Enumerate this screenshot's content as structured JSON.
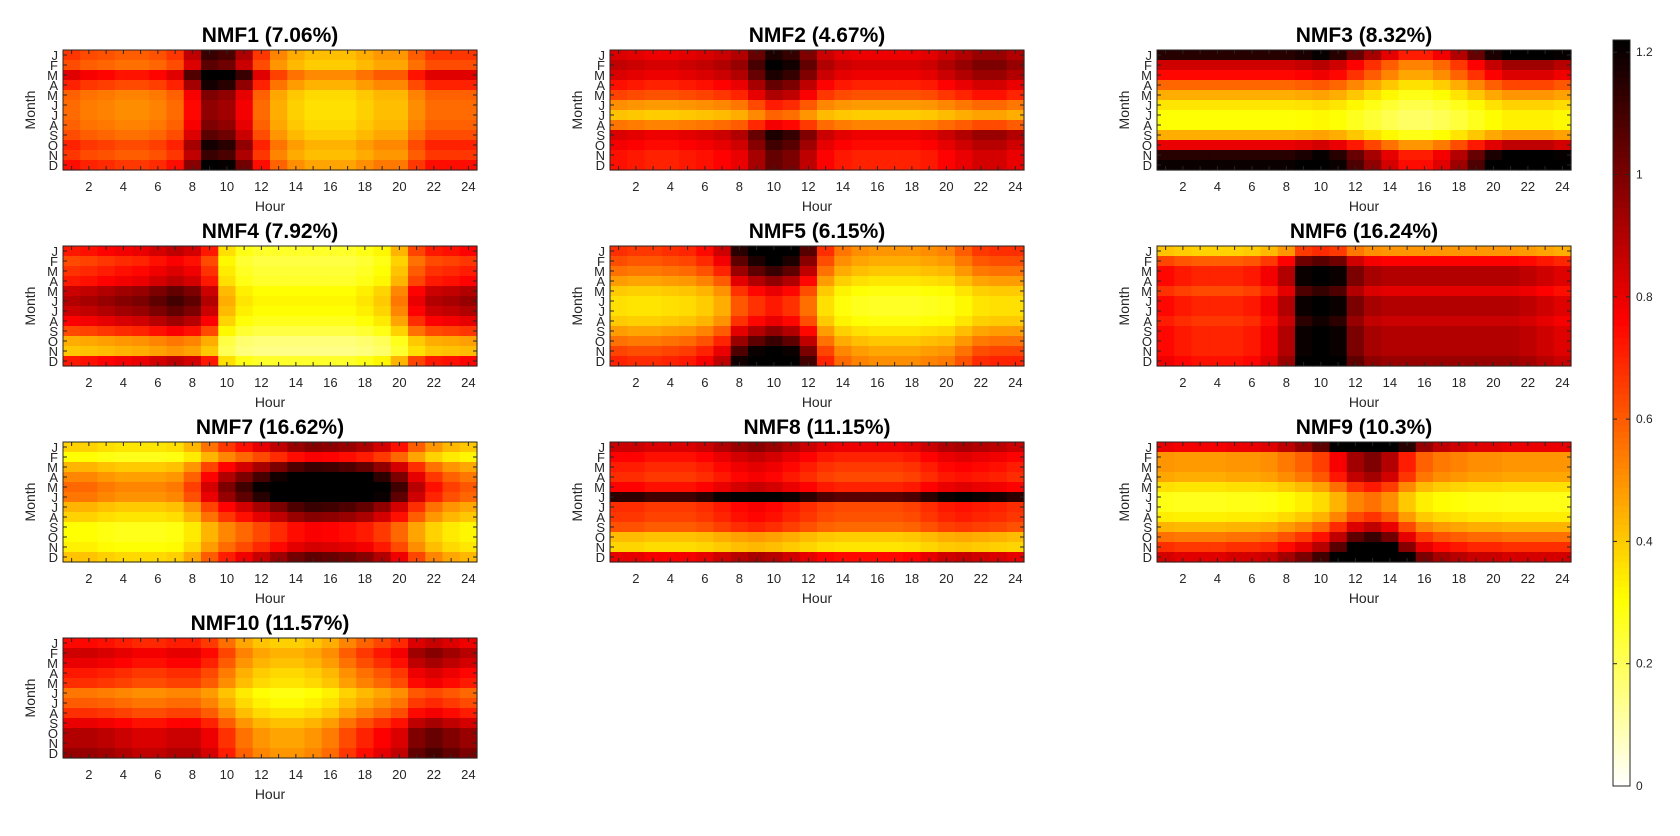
{
  "figure_title": "NMF components: Month x Hour heatmaps",
  "chart_data": {
    "type": "heatmap",
    "xlabel": "Hour",
    "ylabel": "Month",
    "x_ticks": [
      "2",
      "4",
      "6",
      "8",
      "10",
      "12",
      "14",
      "16",
      "18",
      "20",
      "22",
      "24"
    ],
    "months": [
      "J",
      "F",
      "M",
      "A",
      "M",
      "J",
      "J",
      "A",
      "S",
      "O",
      "N",
      "D"
    ],
    "hours": [
      1,
      2,
      3,
      4,
      5,
      6,
      7,
      8,
      9,
      10,
      11,
      12,
      13,
      14,
      15,
      16,
      17,
      18,
      19,
      20,
      21,
      22,
      23,
      24
    ],
    "colormap": "hot (reversed): 0 = white, 1.22 = black",
    "colorbar": {
      "min": 0,
      "max": 1.22,
      "ticks": [
        "0",
        "0.2",
        "0.4",
        "0.6",
        "0.8",
        "1",
        "1.2"
      ],
      "tick_values": [
        0,
        0.2,
        0.4,
        0.6,
        0.8,
        1.0,
        1.2
      ]
    },
    "panels": [
      {
        "title": "NMF1 (7.06%)",
        "month_level": [
          0.7,
          0.66,
          0.86,
          0.74,
          0.62,
          0.6,
          0.6,
          0.62,
          0.66,
          0.74,
          0.7,
          0.78
        ],
        "hour_profile": [
          0.95,
          0.9,
          0.88,
          0.85,
          0.85,
          0.88,
          0.95,
          1.25,
          1.6,
          1.55,
          1.3,
          0.95,
          0.75,
          0.65,
          0.6,
          0.6,
          0.6,
          0.65,
          0.7,
          0.7,
          0.85,
          0.95,
          0.95,
          0.95
        ]
      },
      {
        "title": "NMF2 (4.67%)",
        "month_level": [
          0.9,
          0.95,
          0.9,
          0.8,
          0.7,
          0.55,
          0.45,
          0.6,
          0.9,
          0.85,
          0.8,
          0.8
        ],
        "hour_profile": [
          0.92,
          0.9,
          0.88,
          0.88,
          0.9,
          0.92,
          0.95,
          1.0,
          1.15,
          1.3,
          1.25,
          1.1,
          0.95,
          0.9,
          0.88,
          0.88,
          0.88,
          0.88,
          0.9,
          0.95,
          1.0,
          1.05,
          1.05,
          1.0
        ]
      },
      {
        "title": "NMF3 (8.32%)",
        "month_level": [
          1.15,
          0.85,
          0.75,
          0.58,
          0.45,
          0.35,
          0.3,
          0.3,
          0.45,
          0.8,
          1.15,
          1.2
        ],
        "hour_profile": [
          1.0,
          1.0,
          1.0,
          1.0,
          1.0,
          1.0,
          1.0,
          1.0,
          1.02,
          1.05,
          1.0,
          0.9,
          0.8,
          0.7,
          0.62,
          0.62,
          0.68,
          0.78,
          0.9,
          1.02,
          1.1,
          1.1,
          1.1,
          1.05
        ]
      },
      {
        "title": "NMF4 (7.92%)",
        "month_level": [
          0.8,
          0.7,
          0.75,
          0.8,
          0.95,
          1.0,
          0.95,
          0.85,
          0.7,
          0.5,
          0.45,
          0.8
        ],
        "hour_profile": [
          0.9,
          0.92,
          0.95,
          0.98,
          1.0,
          1.05,
          1.1,
          1.05,
          0.9,
          0.45,
          0.35,
          0.32,
          0.32,
          0.32,
          0.32,
          0.32,
          0.32,
          0.35,
          0.4,
          0.55,
          0.8,
          0.9,
          0.92,
          0.95
        ]
      },
      {
        "title": "NMF5 (6.15%)",
        "month_level": [
          0.85,
          0.78,
          0.7,
          0.6,
          0.5,
          0.45,
          0.45,
          0.5,
          0.6,
          0.7,
          0.8,
          0.88
        ],
        "hour_profile": [
          0.8,
          0.78,
          0.78,
          0.8,
          0.82,
          0.88,
          1.0,
          1.35,
          1.5,
          1.6,
          1.5,
          1.25,
          0.8,
          0.65,
          0.6,
          0.58,
          0.58,
          0.58,
          0.6,
          0.62,
          0.7,
          0.78,
          0.8,
          0.8
        ]
      },
      {
        "title": "NMF6 (16.24%)",
        "month_level": [
          0.55,
          0.85,
          1.0,
          1.0,
          0.9,
          1.0,
          1.0,
          0.95,
          1.0,
          1.0,
          1.0,
          1.05
        ],
        "hour_profile": [
          0.75,
          0.72,
          0.7,
          0.7,
          0.7,
          0.72,
          0.78,
          0.9,
          1.2,
          1.25,
          1.2,
          1.0,
          0.92,
          0.9,
          0.9,
          0.9,
          0.9,
          0.9,
          0.9,
          0.9,
          0.9,
          0.88,
          0.85,
          0.82
        ]
      },
      {
        "title": "NMF7 (16.62%)",
        "month_level": [
          0.7,
          0.55,
          0.8,
          0.95,
          1.05,
          1.0,
          0.8,
          0.7,
          0.55,
          0.55,
          0.6,
          0.75
        ],
        "hour_profile": [
          0.55,
          0.55,
          0.52,
          0.5,
          0.5,
          0.5,
          0.52,
          0.62,
          0.8,
          0.95,
          1.05,
          1.15,
          1.25,
          1.35,
          1.4,
          1.38,
          1.35,
          1.3,
          1.2,
          1.05,
          0.85,
          0.7,
          0.62,
          0.58
        ]
      },
      {
        "title": "NMF8 (11.15%)",
        "month_level": [
          0.9,
          0.8,
          0.75,
          0.72,
          0.8,
          1.2,
          0.72,
          0.7,
          0.65,
          0.45,
          0.4,
          0.85
        ],
        "hour_profile": [
          0.95,
          0.95,
          0.92,
          0.92,
          0.92,
          0.95,
          1.0,
          1.05,
          1.08,
          1.05,
          1.0,
          0.95,
          0.9,
          0.88,
          0.88,
          0.88,
          0.88,
          0.9,
          0.95,
          1.0,
          1.02,
          1.0,
          0.98,
          0.95
        ]
      },
      {
        "title": "NMF9 (10.3%)",
        "month_level": [
          1.0,
          0.62,
          0.62,
          0.58,
          0.45,
          0.35,
          0.35,
          0.42,
          0.55,
          0.7,
          0.85,
          1.05
        ],
        "hour_profile": [
          0.8,
          0.78,
          0.78,
          0.78,
          0.8,
          0.8,
          0.82,
          0.88,
          0.95,
          1.05,
          1.25,
          1.5,
          1.6,
          1.45,
          1.15,
          0.95,
          0.88,
          0.85,
          0.82,
          0.82,
          0.8,
          0.8,
          0.8,
          0.8
        ]
      },
      {
        "title": "NMF10 (11.57%)",
        "month_level": [
          0.75,
          0.85,
          0.8,
          0.72,
          0.68,
          0.55,
          0.6,
          0.68,
          0.8,
          0.9,
          0.9,
          0.95
        ],
        "hour_profile": [
          1.0,
          1.0,
          0.98,
          0.95,
          0.92,
          0.92,
          0.95,
          0.95,
          0.88,
          0.75,
          0.62,
          0.55,
          0.52,
          0.52,
          0.55,
          0.6,
          0.7,
          0.78,
          0.85,
          0.92,
          1.1,
          1.15,
          1.1,
          1.05
        ]
      }
    ]
  }
}
